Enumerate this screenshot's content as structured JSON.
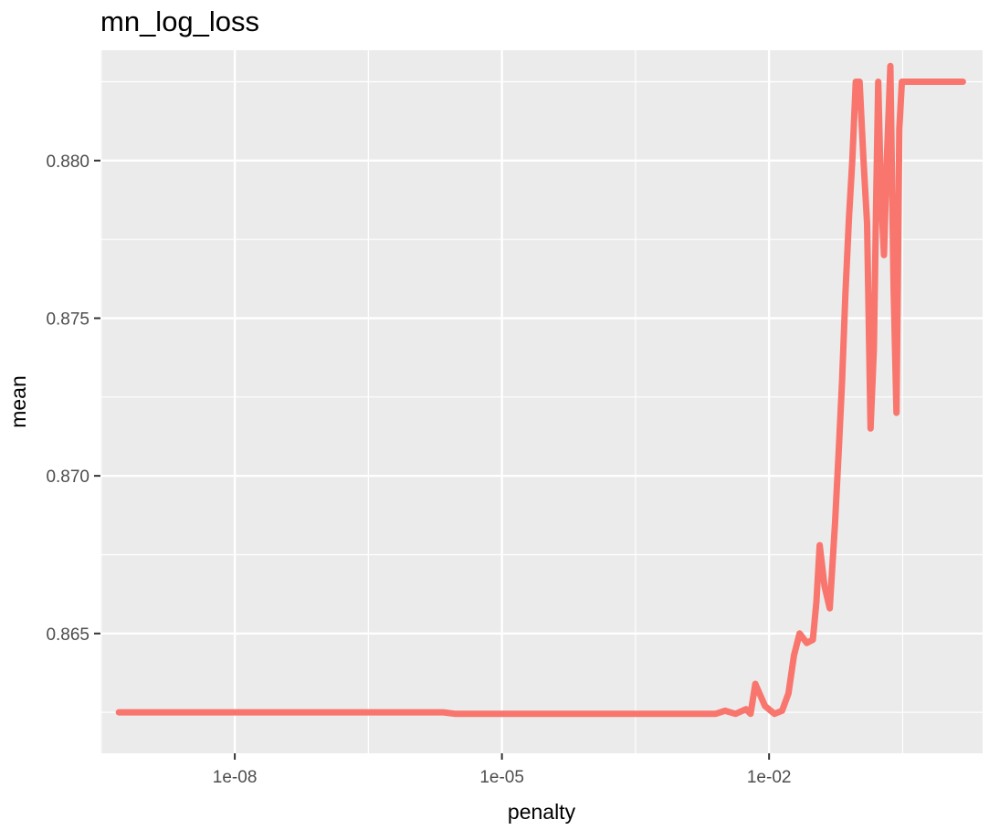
{
  "chart_data": {
    "type": "line",
    "title": "mn_log_loss",
    "xlabel": "penalty",
    "ylabel": "mean",
    "x_scale": "log10",
    "xlim": [
      3.1e-10,
      2.5
    ],
    "ylim": [
      0.8612,
      0.8835
    ],
    "x_ticks": [
      {
        "value": 1e-08,
        "label": "1e-08"
      },
      {
        "value": 1e-05,
        "label": "1e-05"
      },
      {
        "value": 0.01,
        "label": "1e-02"
      }
    ],
    "y_ticks": [
      {
        "value": 0.865,
        "label": "0.865"
      },
      {
        "value": 0.87,
        "label": "0.870"
      },
      {
        "value": 0.875,
        "label": "0.875"
      },
      {
        "value": 0.88,
        "label": "0.880"
      }
    ],
    "grid": true,
    "legend": "none",
    "color": "#f8766d",
    "series": [
      {
        "x": [
          5e-10,
          1e-09,
          1e-08,
          1e-07,
          1e-06,
          2.2e-06,
          3e-06,
          6e-06,
          1e-05,
          2e-05,
          0.0001,
          0.0002,
          0.0004,
          0.0008,
          0.0015,
          0.0025,
          0.0032,
          0.0042,
          0.0055,
          0.0062,
          0.007,
          0.009,
          0.0115,
          0.014,
          0.0165,
          0.019,
          0.022,
          0.0265,
          0.031,
          0.034,
          0.037,
          0.042,
          0.048,
          0.055,
          0.061,
          0.066,
          0.072,
          0.079,
          0.086,
          0.094,
          0.104,
          0.115,
          0.126,
          0.138,
          0.15,
          0.16,
          0.168,
          0.18,
          0.195,
          0.21,
          0.23,
          0.25,
          0.27,
          0.29,
          0.31,
          0.34,
          1.0,
          1.5
        ],
        "y": [
          0.8625,
          0.8625,
          0.8625,
          0.8625,
          0.8625,
          0.8625,
          0.86245,
          0.86245,
          0.86245,
          0.86245,
          0.86245,
          0.86245,
          0.86245,
          0.86245,
          0.86245,
          0.86245,
          0.86255,
          0.86245,
          0.8626,
          0.86245,
          0.8634,
          0.8627,
          0.86245,
          0.86255,
          0.8631,
          0.8643,
          0.865,
          0.8647,
          0.8648,
          0.866,
          0.8678,
          0.8665,
          0.8658,
          0.8685,
          0.871,
          0.873,
          0.8758,
          0.8782,
          0.88,
          0.8825,
          0.8825,
          0.88,
          0.878,
          0.8715,
          0.874,
          0.879,
          0.8825,
          0.879,
          0.877,
          0.88,
          0.883,
          0.876,
          0.872,
          0.881,
          0.8825,
          0.8825,
          0.8825,
          0.8825
        ]
      }
    ]
  }
}
